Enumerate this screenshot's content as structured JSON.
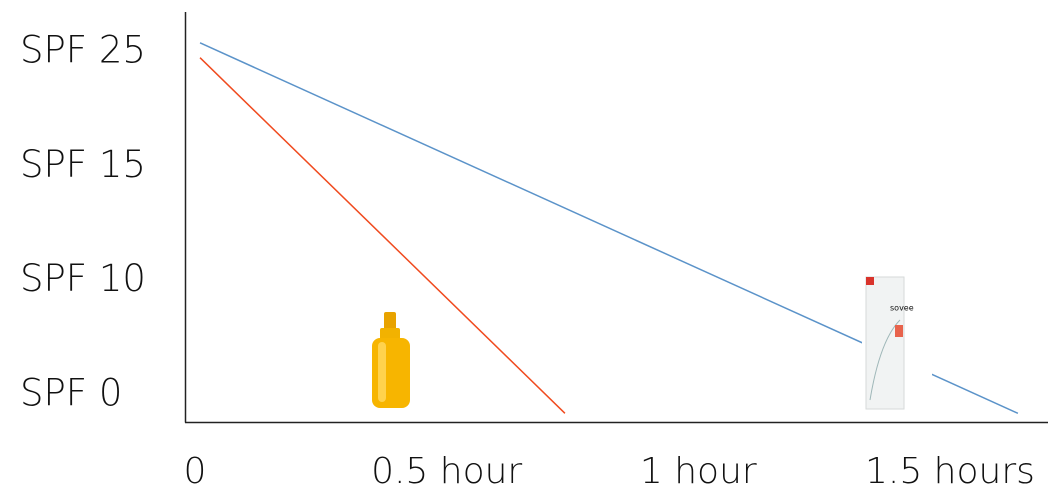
{
  "chart_data": {
    "type": "line",
    "xlim": [
      0,
      1.7
    ],
    "xticks": [
      {
        "value": 0,
        "label": "0"
      },
      {
        "value": 0.5,
        "label": "0.5 hour"
      },
      {
        "value": 1,
        "label": "1 hour"
      },
      {
        "value": 1.5,
        "label": "1.5 hours"
      }
    ],
    "ylim": [
      -2.4,
      28.5
    ],
    "yticks": [
      {
        "value": 0,
        "label": "SPF 0"
      },
      {
        "value": 10,
        "label": "SPF 10"
      },
      {
        "value": 15,
        "label": "SPF 15"
      },
      {
        "value": 25,
        "label": "SPF 25"
      }
    ],
    "series": [
      {
        "color": "#f04a1e",
        "x": [
          0.01,
          0.735
        ],
        "values": [
          24.5,
          -1.6
        ]
      },
      {
        "color": "#5b93c9",
        "x": [
          0.01,
          1.635
        ],
        "values": [
          25.8,
          -1.6
        ]
      }
    ]
  }
}
